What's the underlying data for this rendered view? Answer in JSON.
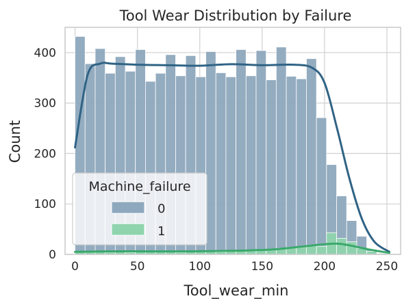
{
  "chart_data": {
    "type": "bar",
    "title": "Tool Wear Distribution by Failure",
    "xlabel": "Tool_wear_min",
    "ylabel": "Count",
    "xlim": [
      -8,
      261
    ],
    "ylim": [
      0,
      450
    ],
    "xticks": [
      0,
      50,
      100,
      150,
      200,
      250
    ],
    "yticks": [
      0,
      100,
      200,
      300,
      400
    ],
    "grid": true,
    "bin_edges": [
      0,
      8.06,
      16.13,
      24.19,
      32.26,
      40.32,
      48.39,
      56.45,
      64.52,
      72.58,
      80.65,
      88.71,
      96.77,
      104.84,
      112.9,
      120.97,
      129.03,
      137.1,
      145.16,
      153.23,
      161.29,
      169.35,
      177.42,
      185.48,
      193.55,
      201.61,
      209.68,
      217.74,
      225.81,
      233.87,
      241.94,
      250
    ],
    "legend": {
      "title": "Machine_failure",
      "placement": "lower-left"
    },
    "series": [
      {
        "name": "0",
        "color": "#8ea8bd",
        "kde_color": "#2f6385",
        "values": [
          432,
          378,
          408,
          359,
          392,
          363,
          406,
          343,
          359,
          396,
          354,
          394,
          352,
          402,
          360,
          352,
          406,
          354,
          404,
          346,
          411,
          353,
          348,
          388,
          271,
          178,
          116,
          67,
          36,
          10,
          2
        ],
        "kde": [
          [
            0,
            212
          ],
          [
            10,
            355
          ],
          [
            20,
            378
          ],
          [
            30,
            378
          ],
          [
            50,
            376
          ],
          [
            75,
            375
          ],
          [
            100,
            374
          ],
          [
            125,
            377
          ],
          [
            150,
            375
          ],
          [
            175,
            376
          ],
          [
            190,
            370
          ],
          [
            200,
            340
          ],
          [
            210,
            250
          ],
          [
            220,
            150
          ],
          [
            230,
            70
          ],
          [
            240,
            25
          ],
          [
            252,
            5
          ]
        ]
      },
      {
        "name": "1",
        "color": "#8fd4ad",
        "kde_color": "#3aa86b",
        "values": [
          6,
          4,
          5,
          4,
          5,
          4,
          6,
          5,
          5,
          6,
          4,
          5,
          6,
          6,
          5,
          6,
          7,
          8,
          8,
          9,
          12,
          14,
          15,
          18,
          16,
          43,
          32,
          25,
          12,
          6,
          2
        ],
        "kde": [
          [
            0,
            5
          ],
          [
            30,
            6
          ],
          [
            60,
            6
          ],
          [
            90,
            6
          ],
          [
            120,
            7
          ],
          [
            140,
            8
          ],
          [
            160,
            10
          ],
          [
            180,
            15
          ],
          [
            195,
            19
          ],
          [
            205,
            21
          ],
          [
            212,
            21
          ],
          [
            222,
            17
          ],
          [
            235,
            10
          ],
          [
            252,
            3
          ]
        ]
      }
    ]
  }
}
